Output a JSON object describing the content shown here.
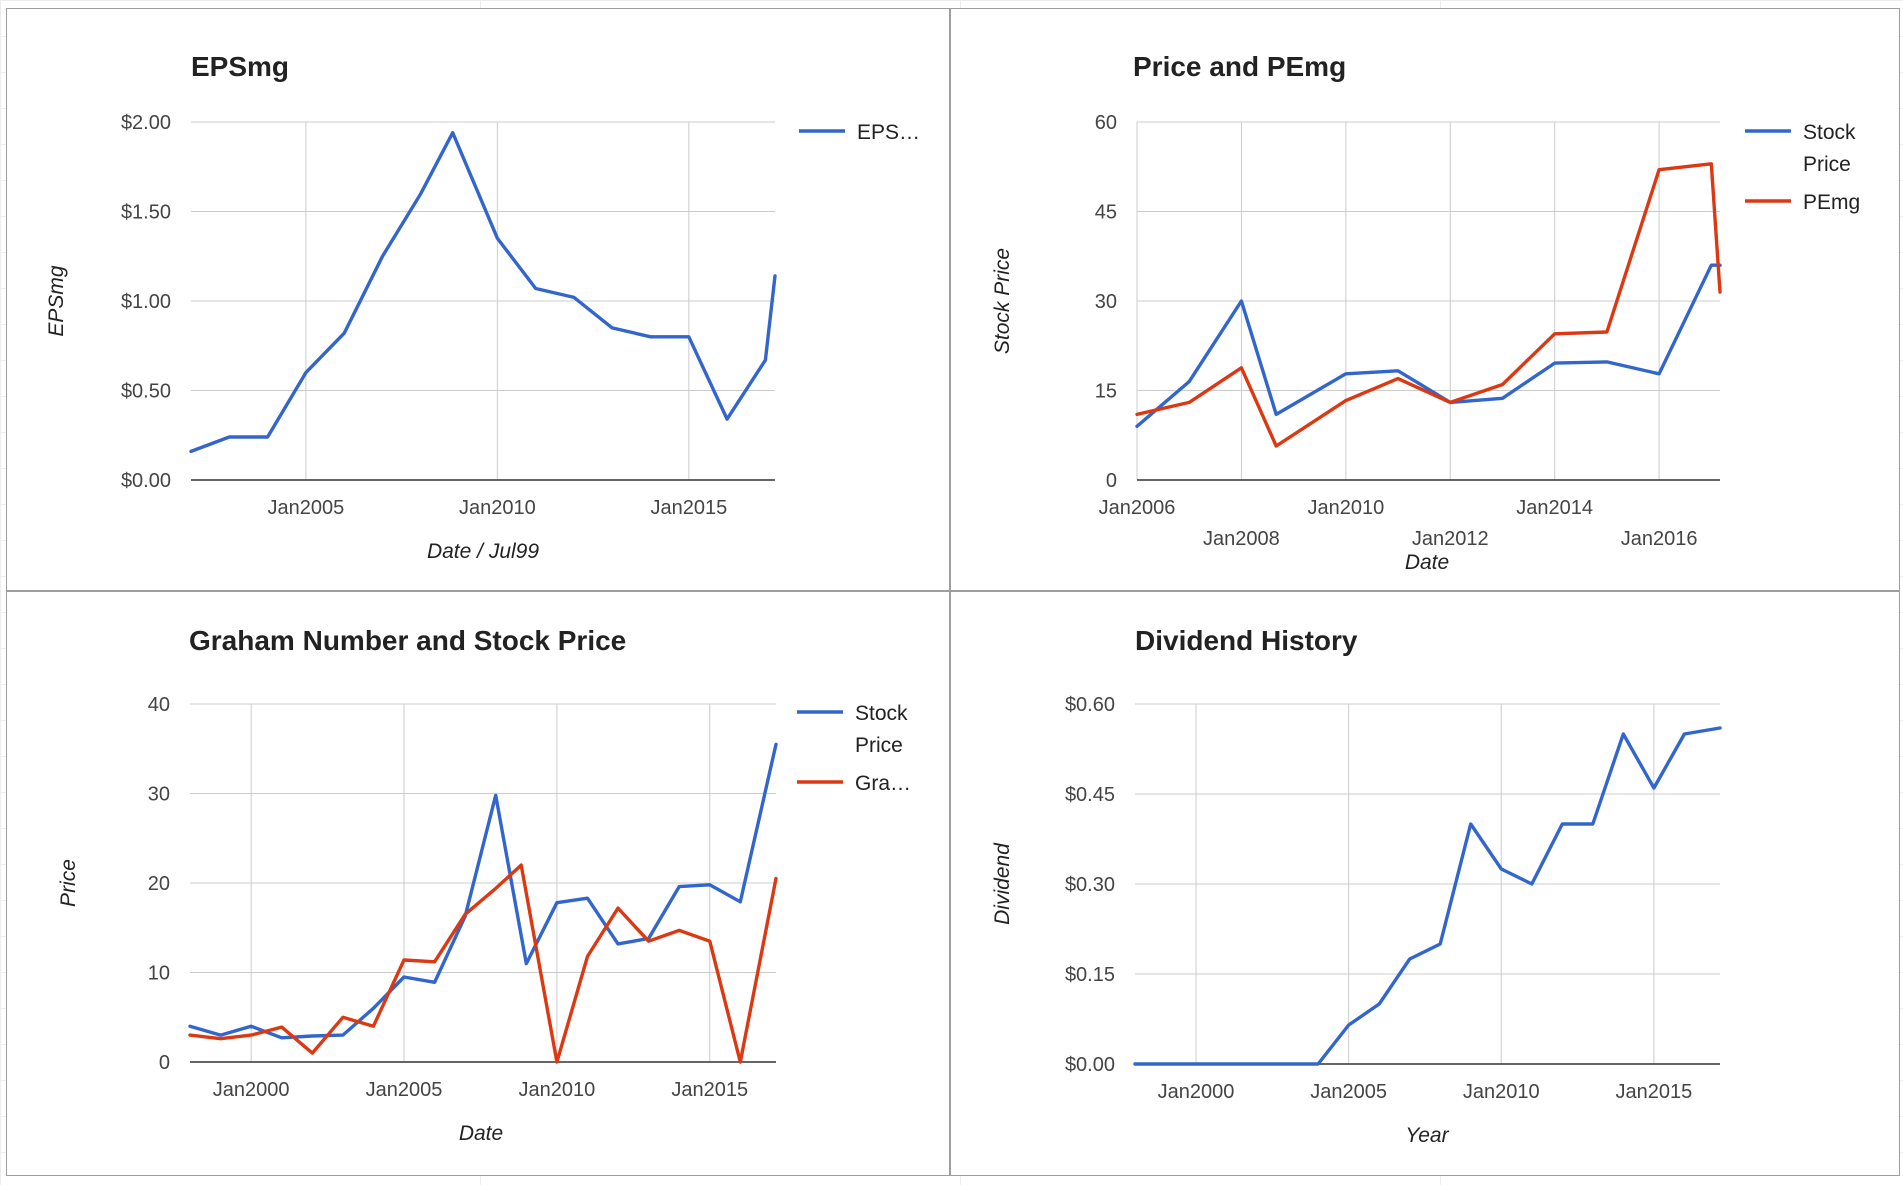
{
  "charts": [
    {
      "title": "EPSmg",
      "chart_data": {
        "type": "line",
        "title": "EPSmg",
        "xlabel": "Date / Jul99",
        "ylabel": "EPSmg",
        "x_type": "date",
        "xlim": [
          "2002-01",
          "2017-04"
        ],
        "ylim": [
          0,
          2
        ],
        "y_ticks": [
          0,
          0.5,
          1,
          1.5,
          2
        ],
        "y_tick_labels": [
          "$0.00",
          "$0.50",
          "$1.00",
          "$1.50",
          "$2.00"
        ],
        "x_ticks": [
          {
            "label": "Jan2005",
            "date": "2005-01",
            "row": 0
          },
          {
            "label": "Jan2010",
            "date": "2010-01",
            "row": 0
          },
          {
            "label": "Jan2015",
            "date": "2015-01",
            "row": 0
          }
        ],
        "grid": true,
        "legend_position": "right",
        "series": [
          {
            "name": "EPS…",
            "color": "#3366cc",
            "points": [
              [
                "2002-01",
                0.16
              ],
              [
                "2003-01",
                0.24
              ],
              [
                "2004-01",
                0.24
              ],
              [
                "2005-01",
                0.6
              ],
              [
                "2006-01",
                0.82
              ],
              [
                "2007-01",
                1.25
              ],
              [
                "2008-01",
                1.6
              ],
              [
                "2008-11",
                1.94
              ],
              [
                "2010-01",
                1.35
              ],
              [
                "2011-01",
                1.07
              ],
              [
                "2012-01",
                1.02
              ],
              [
                "2013-01",
                0.85
              ],
              [
                "2014-01",
                0.8
              ],
              [
                "2015-01",
                0.8
              ],
              [
                "2016-01",
                0.34
              ],
              [
                "2017-01",
                0.67
              ],
              [
                "2017-04",
                1.14
              ]
            ]
          }
        ]
      }
    },
    {
      "title": "Price and PEmg",
      "chart_data": {
        "type": "line",
        "title": "Price and PEmg",
        "xlabel": "Date",
        "ylabel": "Stock Price",
        "x_type": "date",
        "xlim": [
          "2006-01",
          "2017-03"
        ],
        "ylim": [
          0,
          60
        ],
        "y_ticks": [
          0,
          15,
          30,
          45,
          60
        ],
        "y_tick_labels": [
          "0",
          "15",
          "30",
          "45",
          "60"
        ],
        "x_ticks": [
          {
            "label": "Jan2006",
            "date": "2006-01",
            "row": 0
          },
          {
            "label": "Jan2008",
            "date": "2008-01",
            "row": 1
          },
          {
            "label": "Jan2010",
            "date": "2010-01",
            "row": 0
          },
          {
            "label": "Jan2012",
            "date": "2012-01",
            "row": 1
          },
          {
            "label": "Jan2014",
            "date": "2014-01",
            "row": 0
          },
          {
            "label": "Jan2016",
            "date": "2016-01",
            "row": 1
          }
        ],
        "grid": true,
        "legend_position": "right",
        "series": [
          {
            "name": "Stock Price",
            "color": "#3366cc",
            "points": [
              [
                "2006-01",
                9
              ],
              [
                "2007-01",
                16.5
              ],
              [
                "2008-01",
                30
              ],
              [
                "2008-09",
                11
              ],
              [
                "2010-01",
                17.8
              ],
              [
                "2011-01",
                18.3
              ],
              [
                "2012-01",
                13
              ],
              [
                "2013-01",
                13.7
              ],
              [
                "2014-01",
                19.6
              ],
              [
                "2015-01",
                19.8
              ],
              [
                "2016-01",
                17.8
              ],
              [
                "2017-01",
                36
              ],
              [
                "2017-03",
                36
              ]
            ]
          },
          {
            "name": "PEmg",
            "color": "#dc3912",
            "points": [
              [
                "2006-01",
                11
              ],
              [
                "2007-01",
                13
              ],
              [
                "2008-01",
                18.8
              ],
              [
                "2008-09",
                5.7
              ],
              [
                "2010-01",
                13.3
              ],
              [
                "2011-01",
                17
              ],
              [
                "2012-01",
                13
              ],
              [
                "2013-01",
                16
              ],
              [
                "2014-01",
                24.5
              ],
              [
                "2015-01",
                24.8
              ],
              [
                "2016-01",
                52
              ],
              [
                "2017-01",
                53
              ],
              [
                "2017-03",
                31.5
              ]
            ]
          }
        ]
      }
    },
    {
      "title": "Graham Number and Stock Price",
      "chart_data": {
        "type": "line",
        "title": "Graham Number and Stock Price",
        "xlabel": "Date",
        "ylabel": "Price",
        "x_type": "date",
        "xlim": [
          "1998-01",
          "2017-03"
        ],
        "ylim": [
          0,
          40
        ],
        "y_ticks": [
          0,
          10,
          20,
          30,
          40
        ],
        "y_tick_labels": [
          "0",
          "10",
          "20",
          "30",
          "40"
        ],
        "x_ticks": [
          {
            "label": "Jan2000",
            "date": "2000-01",
            "row": 0
          },
          {
            "label": "Jan2005",
            "date": "2005-01",
            "row": 0
          },
          {
            "label": "Jan2010",
            "date": "2010-01",
            "row": 0
          },
          {
            "label": "Jan2015",
            "date": "2015-01",
            "row": 0
          }
        ],
        "grid": true,
        "legend_position": "right",
        "series": [
          {
            "name": "Stock Price",
            "color": "#3366cc",
            "points": [
              [
                "1998-01",
                4
              ],
              [
                "1999-01",
                3
              ],
              [
                "2000-01",
                4
              ],
              [
                "2001-01",
                2.7
              ],
              [
                "2002-01",
                2.9
              ],
              [
                "2003-01",
                3
              ],
              [
                "2004-01",
                6
              ],
              [
                "2005-01",
                9.5
              ],
              [
                "2006-01",
                8.9
              ],
              [
                "2007-01",
                16.3
              ],
              [
                "2008-01",
                29.8
              ],
              [
                "2009-01",
                11
              ],
              [
                "2010-01",
                17.8
              ],
              [
                "2011-01",
                18.3
              ],
              [
                "2012-01",
                13.2
              ],
              [
                "2013-01",
                13.8
              ],
              [
                "2014-01",
                19.6
              ],
              [
                "2015-01",
                19.8
              ],
              [
                "2016-01",
                17.9
              ],
              [
                "2017-03",
                35.5
              ]
            ]
          },
          {
            "name": "Gra…",
            "color": "#dc3912",
            "points": [
              [
                "1998-01",
                3
              ],
              [
                "1999-01",
                2.6
              ],
              [
                "2000-01",
                3
              ],
              [
                "2001-01",
                3.9
              ],
              [
                "2002-01",
                1
              ],
              [
                "2003-01",
                5
              ],
              [
                "2004-01",
                4
              ],
              [
                "2005-01",
                11.4
              ],
              [
                "2006-01",
                11.2
              ],
              [
                "2007-01",
                16.5
              ],
              [
                "2008-01",
                19.4
              ],
              [
                "2008-11",
                22
              ],
              [
                "2010-01",
                0
              ],
              [
                "2011-01",
                11.8
              ],
              [
                "2012-01",
                17.2
              ],
              [
                "2013-01",
                13.5
              ],
              [
                "2014-01",
                14.7
              ],
              [
                "2015-01",
                13.5
              ],
              [
                "2016-01",
                0
              ],
              [
                "2017-03",
                20.5
              ]
            ]
          }
        ]
      }
    },
    {
      "title": "Dividend History",
      "chart_data": {
        "type": "line",
        "title": "Dividend History",
        "xlabel": "Year",
        "ylabel": "Dividend",
        "x_type": "date",
        "xlim": [
          "1998-01",
          "2017-03"
        ],
        "ylim": [
          0,
          0.6
        ],
        "y_ticks": [
          0,
          0.15,
          0.3,
          0.45,
          0.6
        ],
        "y_tick_labels": [
          "$0.00",
          "$0.15",
          "$0.30",
          "$0.45",
          "$0.60"
        ],
        "x_ticks": [
          {
            "label": "Jan2000",
            "date": "2000-01",
            "row": 0
          },
          {
            "label": "Jan2005",
            "date": "2005-01",
            "row": 0
          },
          {
            "label": "Jan2010",
            "date": "2010-01",
            "row": 0
          },
          {
            "label": "Jan2015",
            "date": "2015-01",
            "row": 0
          }
        ],
        "grid": true,
        "legend_position": "none",
        "series": [
          {
            "name": "",
            "color": "#3366cc",
            "points": [
              [
                "1998-01",
                0
              ],
              [
                "1999-01",
                0
              ],
              [
                "2000-01",
                0
              ],
              [
                "2001-01",
                0
              ],
              [
                "2002-01",
                0
              ],
              [
                "2003-01",
                0
              ],
              [
                "2004-01",
                0
              ],
              [
                "2005-01",
                0.065
              ],
              [
                "2006-01",
                0.1
              ],
              [
                "2007-01",
                0.175
              ],
              [
                "2008-01",
                0.2
              ],
              [
                "2009-01",
                0.4
              ],
              [
                "2010-01",
                0.325
              ],
              [
                "2011-01",
                0.3
              ],
              [
                "2012-01",
                0.4
              ],
              [
                "2013-01",
                0.4
              ],
              [
                "2014-01",
                0.55
              ],
              [
                "2015-01",
                0.46
              ],
              [
                "2016-01",
                0.55
              ],
              [
                "2017-03",
                0.56
              ]
            ]
          }
        ]
      }
    }
  ],
  "colors": {
    "series_blue": "#3366cc",
    "series_red": "#dc3912",
    "grid": "#cccccc",
    "axis": "#333333",
    "text": "#222222",
    "tick_text": "#444444"
  }
}
